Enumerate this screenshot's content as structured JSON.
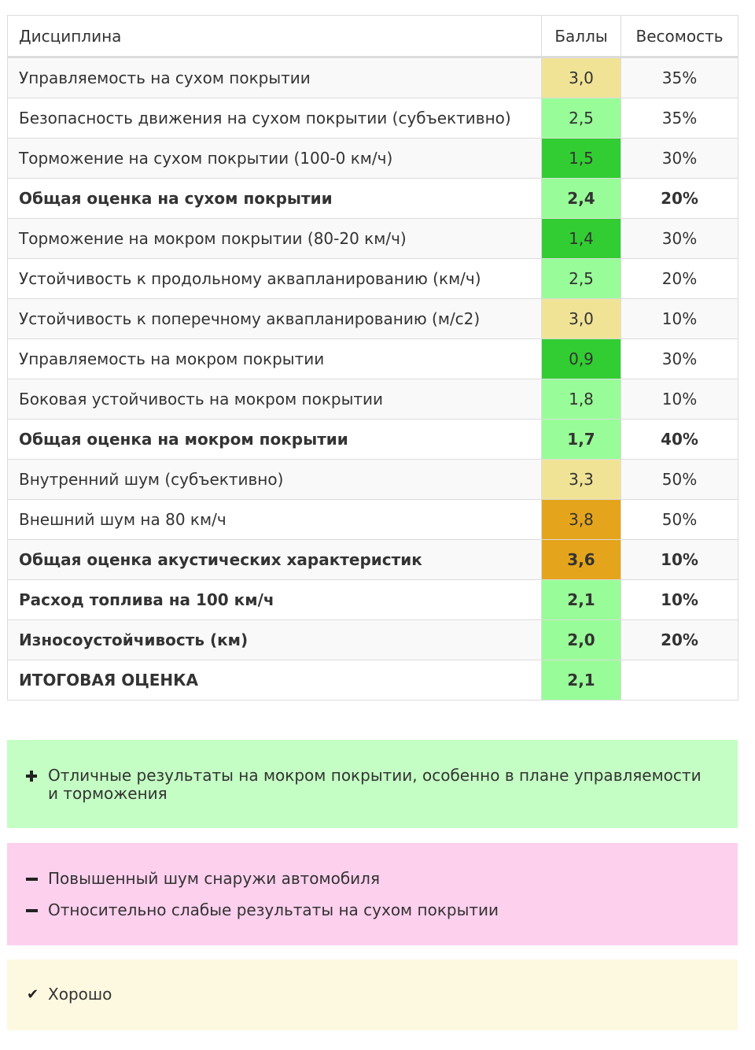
{
  "table": {
    "headers": {
      "discipline": "Дисциплина",
      "score": "Баллы",
      "weight": "Весомость"
    },
    "rows": [
      {
        "name": "Управляемость на сухом покрытии",
        "score": "3,0",
        "weight": "35%"
      },
      {
        "name": "Безопасность движения на сухом покрытии (субъективно)",
        "score": "2,5",
        "weight": "35%"
      },
      {
        "name": "Торможение на сухом покрытии (100-0 км/ч)",
        "score": "1,5",
        "weight": "30%"
      },
      {
        "name": "Общая оценка на сухом покрытии",
        "score": "2,4",
        "weight": "20%"
      },
      {
        "name": "Торможение на мокром покрытии (80-20 км/ч)",
        "score": "1,4",
        "weight": "30%"
      },
      {
        "name": "Устойчивость к продольному аквапланированию (км/ч)",
        "score": "2,5",
        "weight": "20%"
      },
      {
        "name": "Устойчивость к поперечному аквапланированию (м/с2)",
        "score": "3,0",
        "weight": "10%"
      },
      {
        "name": "Управляемость на мокром покрытии",
        "score": "0,9",
        "weight": "30%"
      },
      {
        "name": "Боковая устойчивость на мокром покрытии",
        "score": "1,8",
        "weight": "10%"
      },
      {
        "name": "Общая оценка на мокром покрытии",
        "score": "1,7",
        "weight": "40%"
      },
      {
        "name": "Внутренний шум (субъективно)",
        "score": "3,3",
        "weight": "50%"
      },
      {
        "name": "Внешний шум на 80 км/ч",
        "score": "3,8",
        "weight": "50%"
      },
      {
        "name": "Общая оценка акустических характеристик",
        "score": "3,6",
        "weight": "10%"
      },
      {
        "name": "Расход топлива на 100 км/ч",
        "score": "2,1",
        "weight": "10%"
      },
      {
        "name": "Износоустойчивость (км)",
        "score": "2,0",
        "weight": "20%"
      },
      {
        "name": "ИТОГОВАЯ ОЦЕНКА",
        "score": "2,1",
        "weight": ""
      }
    ]
  },
  "score_colors": {
    "yellow": "#f0e396",
    "light_green": "#98fd98",
    "green": "#32cd32",
    "orange": "#e4a51c"
  },
  "pros": {
    "icon": "plus-icon",
    "items": [
      "Отличные результаты на мокром покрытии, особенно в плане управляемости и торможения"
    ]
  },
  "cons": {
    "icon": "minus-icon",
    "items": [
      "Повышенный шум снаружи автомобиля",
      "Относительно слабые результаты на сухом покрытии"
    ]
  },
  "verdict": {
    "icon": "check-icon",
    "text": "Хорошо"
  }
}
